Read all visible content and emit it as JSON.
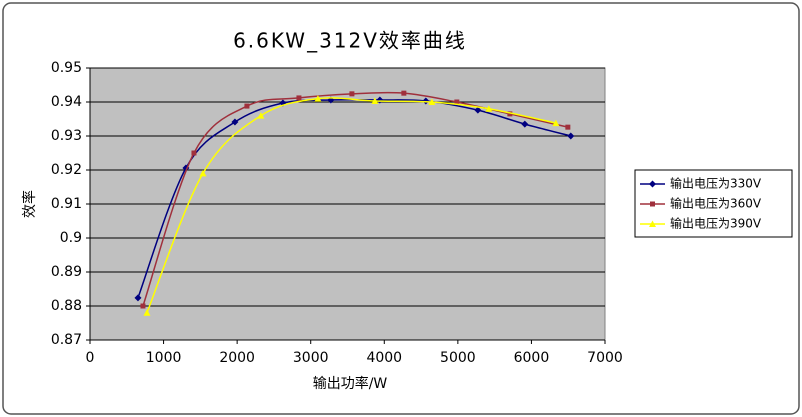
{
  "chart_data": {
    "type": "scatter-smooth",
    "title": "6.6KW_312V效率曲线",
    "x_label": "输出功率/W",
    "y_label": "效率",
    "xlim": [
      0,
      7000
    ],
    "xticks": [
      0,
      1000,
      2000,
      3000,
      4000,
      5000,
      6000,
      7000
    ],
    "ylim": [
      0.87,
      0.95
    ],
    "yticks": [
      0.87,
      0.88,
      0.89,
      0.9,
      0.91,
      0.92,
      0.93,
      0.94,
      0.95
    ],
    "grid": true,
    "legend": "right",
    "series": [
      {
        "name": "输出电压为330V",
        "color": "#000080",
        "marker": "diamond",
        "x": [
          652,
          1304,
          1970,
          2622,
          3274,
          3940,
          4565,
          5272,
          5910,
          6535
        ],
        "values": [
          0.8824,
          0.9206,
          0.9341,
          0.9397,
          0.9406,
          0.9406,
          0.9403,
          0.9376,
          0.9335,
          0.93
        ]
      },
      {
        "name": "输出电压为360V",
        "color": "#a0303c",
        "marker": "square",
        "x": [
          720,
          1413,
          2133,
          2840,
          3560,
          4266,
          4986,
          5707,
          6495
        ],
        "values": [
          0.88,
          0.925,
          0.9388,
          0.9412,
          0.9424,
          0.9426,
          0.94,
          0.9365,
          0.9326
        ]
      },
      {
        "name": "输出电压为390V",
        "color": "#ffff00",
        "marker": "triangle",
        "x": [
          774,
          1535,
          2323,
          3098,
          3872,
          4647,
          5421,
          6332
        ],
        "values": [
          0.878,
          0.919,
          0.936,
          0.941,
          0.9403,
          0.94,
          0.938,
          0.9338
        ]
      }
    ]
  }
}
